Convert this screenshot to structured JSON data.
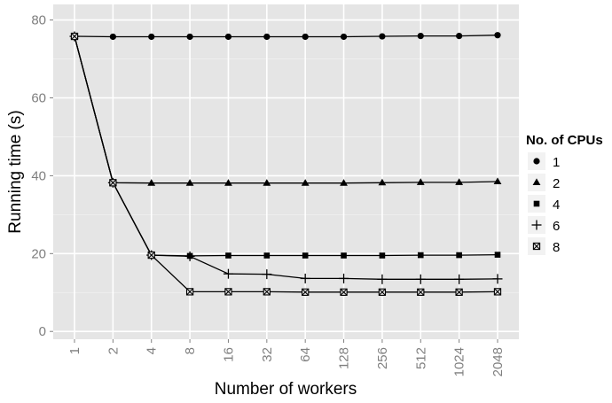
{
  "chart_data": {
    "type": "line",
    "xlabel": "Number of workers",
    "ylabel": "Running time (s)",
    "x_categories": [
      "1",
      "2",
      "4",
      "8",
      "16",
      "32",
      "64",
      "128",
      "256",
      "512",
      "1024",
      "2048"
    ],
    "y_ticks": [
      "0",
      "20",
      "40",
      "60",
      "80"
    ],
    "ylim": [
      -2,
      84
    ],
    "grid": true,
    "legend": {
      "title": "No. of CPUs",
      "placement": "right"
    },
    "series": [
      {
        "name": "1",
        "marker": "circle",
        "values": [
          75.8,
          75.7,
          75.7,
          75.7,
          75.7,
          75.7,
          75.7,
          75.7,
          75.8,
          75.9,
          75.9,
          76.1
        ]
      },
      {
        "name": "2",
        "marker": "triangle",
        "values": [
          75.8,
          38.2,
          38.1,
          38.1,
          38.1,
          38.1,
          38.1,
          38.1,
          38.2,
          38.3,
          38.3,
          38.5
        ]
      },
      {
        "name": "4",
        "marker": "square",
        "values": [
          75.8,
          38.2,
          19.6,
          19.4,
          19.5,
          19.5,
          19.5,
          19.5,
          19.5,
          19.6,
          19.6,
          19.7
        ]
      },
      {
        "name": "6",
        "marker": "plus",
        "values": [
          75.8,
          38.2,
          19.6,
          19.3,
          14.8,
          14.7,
          13.6,
          13.6,
          13.4,
          13.4,
          13.4,
          13.5
        ]
      },
      {
        "name": "8",
        "marker": "boxx",
        "values": [
          75.8,
          38.2,
          19.6,
          10.2,
          10.2,
          10.2,
          10.1,
          10.1,
          10.1,
          10.1,
          10.1,
          10.2
        ]
      }
    ]
  }
}
